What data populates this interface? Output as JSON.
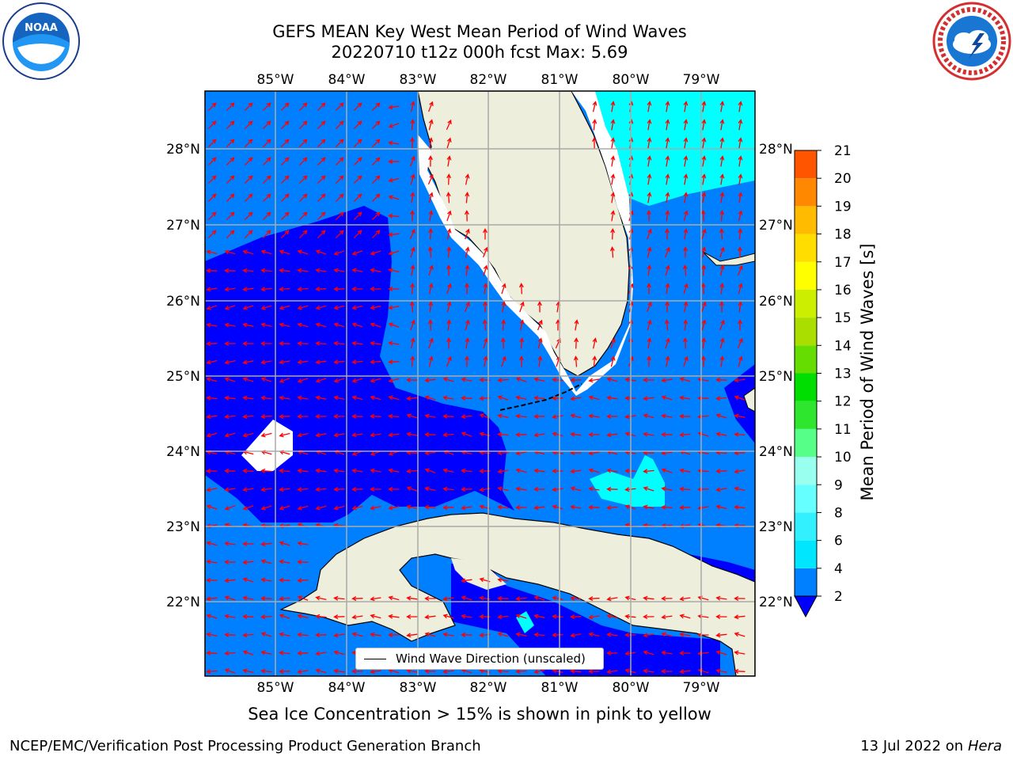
{
  "title_line1": "GEFS MEAN Key West Mean Period of Wind Waves",
  "title_line2": "20220710 t12z 000h fcst   Max: 5.69",
  "subtitle": "Sea Ice Concentration > 15% is shown in pink to yellow",
  "footer_left": "NCEP/EMC/Verification Post Processing Product Generation Branch",
  "footer_date": "13 Jul 2022 on ",
  "footer_host": "Hera",
  "logos": {
    "left": "noaa-logo",
    "left_text": "NOAA",
    "right": "nws-logo"
  },
  "map": {
    "lon_ticks": [
      "85°W",
      "84°W",
      "83°W",
      "82°W",
      "81°W",
      "80°W",
      "79°W"
    ],
    "lat_ticks": [
      "28°N",
      "27°N",
      "26°N",
      "25°N",
      "24°N",
      "23°N",
      "22°N"
    ],
    "land_color": "#eeeedd",
    "arrow_color": "#ff0000"
  },
  "legend": {
    "label": "Wind Wave Direction (unscaled)"
  },
  "colorbar": {
    "label": "Mean Period of Wind Waves [s]",
    "ticks": [
      "2",
      "4",
      "6",
      "8",
      "9",
      "10",
      "11",
      "12",
      "13",
      "14",
      "15",
      "16",
      "17",
      "18",
      "19",
      "20",
      "21"
    ],
    "colors": [
      "#0080ff",
      "#00e6ff",
      "#33f0ff",
      "#66ffff",
      "#99ffee",
      "#55ff88",
      "#2ee62e",
      "#00dd00",
      "#66dd00",
      "#aadd00",
      "#ccee00",
      "#ffff00",
      "#ffdd00",
      "#ffbb00",
      "#ff8800",
      "#ff5500",
      "#ff2200",
      "#ff0000"
    ],
    "under_color": "#0000ff"
  }
}
